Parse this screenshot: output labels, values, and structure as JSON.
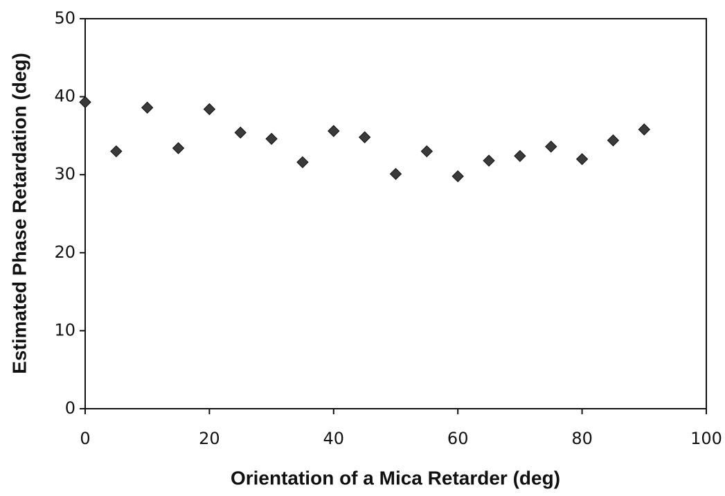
{
  "chart_data": {
    "type": "scatter",
    "xlabel": "Orientation of a Mica Retarder (deg)",
    "ylabel": "Estimated Phase Retardation (deg)",
    "x": [
      0,
      5,
      10,
      15,
      20,
      25,
      30,
      35,
      40,
      45,
      50,
      55,
      60,
      65,
      70,
      75,
      80,
      85,
      90
    ],
    "values": [
      39.3,
      33.0,
      38.6,
      33.4,
      38.4,
      35.4,
      34.6,
      31.6,
      35.6,
      34.8,
      30.1,
      33.0,
      29.8,
      31.8,
      32.4,
      33.6,
      32.0,
      34.4,
      35.8
    ],
    "color": "#3a3a3a",
    "xlim": [
      0,
      100
    ],
    "xticks": [
      0,
      20,
      40,
      60,
      80,
      100
    ],
    "ylim": [
      0,
      50
    ],
    "yticks": [
      0,
      10,
      20,
      30,
      40,
      50
    ]
  }
}
